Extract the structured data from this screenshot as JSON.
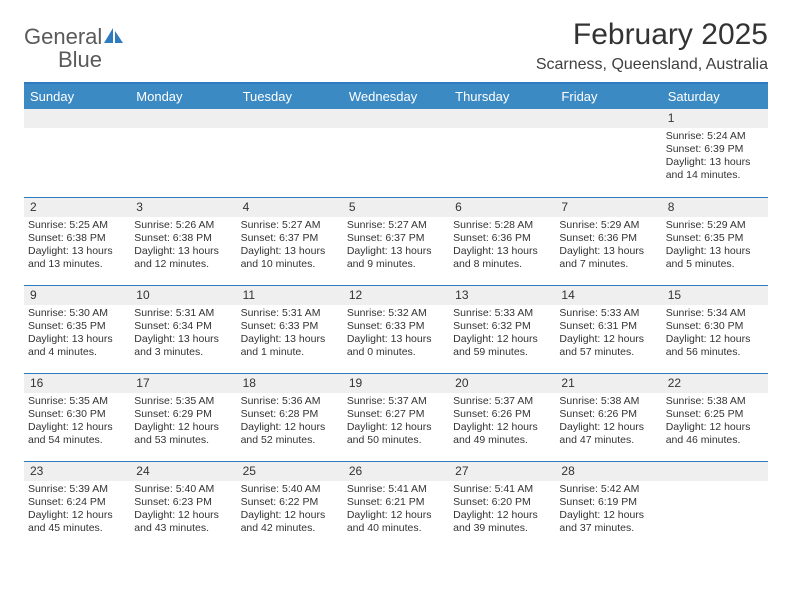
{
  "brand": {
    "name_a": "General",
    "name_b": "Blue"
  },
  "title": "February 2025",
  "location": "Scarness, Queensland, Australia",
  "colors": {
    "accent": "#2f7bbf",
    "header_bg": "#3b8ac4",
    "daynum_bg": "#efefef",
    "text": "#333333",
    "bg": "#ffffff"
  },
  "day_names": [
    "Sunday",
    "Monday",
    "Tuesday",
    "Wednesday",
    "Thursday",
    "Friday",
    "Saturday"
  ],
  "layout": {
    "leading_blanks": 6,
    "days_in_month": 28
  },
  "fonts": {
    "title_pt": 30,
    "location_pt": 16,
    "dayhead_pt": 13,
    "daynum_pt": 12,
    "body_pt": 10.5
  },
  "days": [
    {
      "n": 1,
      "sunrise": "5:24 AM",
      "sunset": "6:39 PM",
      "daylight": "13 hours and 14 minutes."
    },
    {
      "n": 2,
      "sunrise": "5:25 AM",
      "sunset": "6:38 PM",
      "daylight": "13 hours and 13 minutes."
    },
    {
      "n": 3,
      "sunrise": "5:26 AM",
      "sunset": "6:38 PM",
      "daylight": "13 hours and 12 minutes."
    },
    {
      "n": 4,
      "sunrise": "5:27 AM",
      "sunset": "6:37 PM",
      "daylight": "13 hours and 10 minutes."
    },
    {
      "n": 5,
      "sunrise": "5:27 AM",
      "sunset": "6:37 PM",
      "daylight": "13 hours and 9 minutes."
    },
    {
      "n": 6,
      "sunrise": "5:28 AM",
      "sunset": "6:36 PM",
      "daylight": "13 hours and 8 minutes."
    },
    {
      "n": 7,
      "sunrise": "5:29 AM",
      "sunset": "6:36 PM",
      "daylight": "13 hours and 7 minutes."
    },
    {
      "n": 8,
      "sunrise": "5:29 AM",
      "sunset": "6:35 PM",
      "daylight": "13 hours and 5 minutes."
    },
    {
      "n": 9,
      "sunrise": "5:30 AM",
      "sunset": "6:35 PM",
      "daylight": "13 hours and 4 minutes."
    },
    {
      "n": 10,
      "sunrise": "5:31 AM",
      "sunset": "6:34 PM",
      "daylight": "13 hours and 3 minutes."
    },
    {
      "n": 11,
      "sunrise": "5:31 AM",
      "sunset": "6:33 PM",
      "daylight": "13 hours and 1 minute."
    },
    {
      "n": 12,
      "sunrise": "5:32 AM",
      "sunset": "6:33 PM",
      "daylight": "13 hours and 0 minutes."
    },
    {
      "n": 13,
      "sunrise": "5:33 AM",
      "sunset": "6:32 PM",
      "daylight": "12 hours and 59 minutes."
    },
    {
      "n": 14,
      "sunrise": "5:33 AM",
      "sunset": "6:31 PM",
      "daylight": "12 hours and 57 minutes."
    },
    {
      "n": 15,
      "sunrise": "5:34 AM",
      "sunset": "6:30 PM",
      "daylight": "12 hours and 56 minutes."
    },
    {
      "n": 16,
      "sunrise": "5:35 AM",
      "sunset": "6:30 PM",
      "daylight": "12 hours and 54 minutes."
    },
    {
      "n": 17,
      "sunrise": "5:35 AM",
      "sunset": "6:29 PM",
      "daylight": "12 hours and 53 minutes."
    },
    {
      "n": 18,
      "sunrise": "5:36 AM",
      "sunset": "6:28 PM",
      "daylight": "12 hours and 52 minutes."
    },
    {
      "n": 19,
      "sunrise": "5:37 AM",
      "sunset": "6:27 PM",
      "daylight": "12 hours and 50 minutes."
    },
    {
      "n": 20,
      "sunrise": "5:37 AM",
      "sunset": "6:26 PM",
      "daylight": "12 hours and 49 minutes."
    },
    {
      "n": 21,
      "sunrise": "5:38 AM",
      "sunset": "6:26 PM",
      "daylight": "12 hours and 47 minutes."
    },
    {
      "n": 22,
      "sunrise": "5:38 AM",
      "sunset": "6:25 PM",
      "daylight": "12 hours and 46 minutes."
    },
    {
      "n": 23,
      "sunrise": "5:39 AM",
      "sunset": "6:24 PM",
      "daylight": "12 hours and 45 minutes."
    },
    {
      "n": 24,
      "sunrise": "5:40 AM",
      "sunset": "6:23 PM",
      "daylight": "12 hours and 43 minutes."
    },
    {
      "n": 25,
      "sunrise": "5:40 AM",
      "sunset": "6:22 PM",
      "daylight": "12 hours and 42 minutes."
    },
    {
      "n": 26,
      "sunrise": "5:41 AM",
      "sunset": "6:21 PM",
      "daylight": "12 hours and 40 minutes."
    },
    {
      "n": 27,
      "sunrise": "5:41 AM",
      "sunset": "6:20 PM",
      "daylight": "12 hours and 39 minutes."
    },
    {
      "n": 28,
      "sunrise": "5:42 AM",
      "sunset": "6:19 PM",
      "daylight": "12 hours and 37 minutes."
    }
  ],
  "labels": {
    "sunrise": "Sunrise:",
    "sunset": "Sunset:",
    "daylight": "Daylight:"
  }
}
